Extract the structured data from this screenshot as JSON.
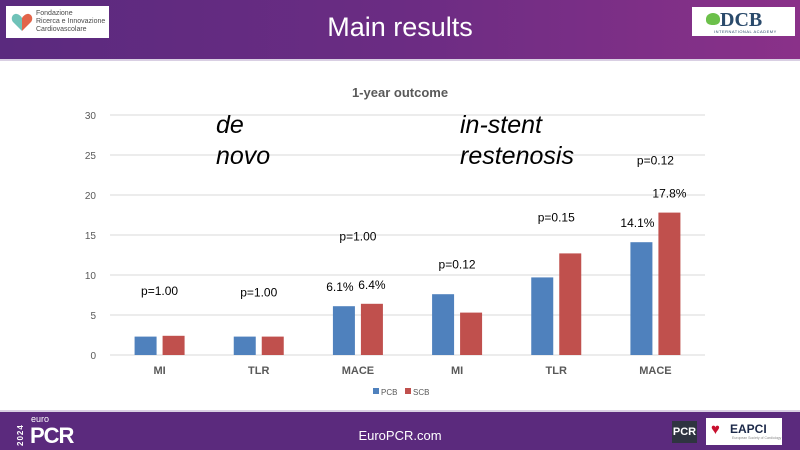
{
  "header": {
    "title": "Main results",
    "logo_left_text": [
      "Fondazione",
      "Ricerca e Innovazione",
      "Cardiovascolare"
    ],
    "logo_right_text": "DCB",
    "logo_right_subtext": "INTERNATIONAL ACADEMY"
  },
  "footer": {
    "url": "EuroPCR.com",
    "brand_year": "2024",
    "brand_prefix": "euro",
    "brand_name": "PCR",
    "pcr_badge": "PCR",
    "eapci_label": "EAPCI",
    "eapci_sub": "European Society of Cardiology"
  },
  "colors": {
    "header_bg": "#5a2a7e",
    "pcb": "#4f81bd",
    "scb": "#c0504d"
  },
  "chart_data": {
    "type": "bar",
    "title": "1-year outcome",
    "xlabel": "",
    "ylabel": "",
    "ylim": [
      0,
      30
    ],
    "yticks": [
      0,
      5,
      10,
      15,
      20,
      25,
      30
    ],
    "grid": true,
    "legend_position": "bottom",
    "categories": [
      "MI",
      "TLR",
      "MACE",
      "MI",
      "TLR",
      "MACE"
    ],
    "series": [
      {
        "name": "PCB",
        "values": [
          2.3,
          2.3,
          6.1,
          7.6,
          9.7,
          14.1
        ]
      },
      {
        "name": "SCB",
        "values": [
          2.4,
          2.3,
          6.4,
          5.3,
          12.7,
          17.8
        ]
      }
    ],
    "group_labels": [
      {
        "text": [
          "de",
          "novo"
        ],
        "categories": [
          0,
          1,
          2
        ]
      },
      {
        "text": [
          "in-stent",
          "restenosis"
        ],
        "categories": [
          3,
          4,
          5
        ]
      }
    ],
    "p_values": [
      {
        "category": 0,
        "text": "p=1.00",
        "y": 7.5
      },
      {
        "category": 1,
        "text": "p=1.00",
        "y": 7.3
      },
      {
        "category": 2,
        "text": "p=1.00",
        "y": 14.3
      },
      {
        "category": 3,
        "text": "p=0.12",
        "y": 10.8
      },
      {
        "category": 4,
        "text": "p=0.15",
        "y": 16.7
      },
      {
        "category": 5,
        "text": "p=0.12",
        "y": 23.8
      }
    ],
    "value_labels": [
      {
        "category": 2,
        "series": 0,
        "text": "6.1%"
      },
      {
        "category": 2,
        "series": 1,
        "text": "6.4%"
      },
      {
        "category": 5,
        "series": 0,
        "text": "14.1%"
      },
      {
        "category": 5,
        "series": 1,
        "text": "17.8%"
      }
    ]
  }
}
